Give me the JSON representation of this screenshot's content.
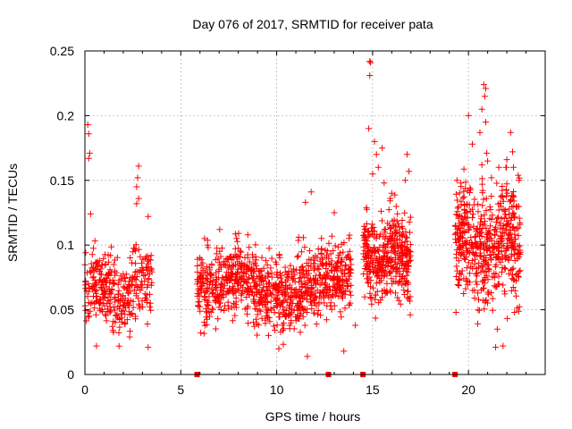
{
  "chart_data": {
    "type": "scatter",
    "title": "Day 076 of 2017, SRMTID for receiver pata",
    "xlabel": "GPS time / hours",
    "ylabel": "SRMTID / TECUs",
    "xlim": [
      0,
      24
    ],
    "ylim": [
      0,
      0.25
    ],
    "xticks": [
      0,
      5,
      10,
      15,
      20
    ],
    "xtick_labels": [
      "0",
      "5",
      "10",
      "15",
      "20"
    ],
    "yticks": [
      0,
      0.05,
      0.1,
      0.15,
      0.2,
      0.25
    ],
    "ytick_labels": [
      "0",
      "0.05",
      "0.1",
      "0.15",
      "0.2",
      "0.25"
    ],
    "grid": true,
    "marker": "+",
    "color": "#ff0000",
    "zero_markers": [
      5.85,
      12.7,
      14.5,
      19.3
    ],
    "series": [
      {
        "name": "SRMTID",
        "segments": [
          {
            "x_start": 0.0,
            "x_end": 3.5,
            "center": 0.065,
            "spread": 0.022,
            "count": 340
          },
          {
            "x_start": 5.85,
            "x_end": 13.9,
            "center": 0.068,
            "spread": 0.022,
            "count": 950
          },
          {
            "x_start": 14.5,
            "x_end": 17.0,
            "center": 0.09,
            "spread": 0.025,
            "count": 380
          },
          {
            "x_start": 19.3,
            "x_end": 22.7,
            "center": 0.1,
            "spread": 0.035,
            "count": 520
          }
        ],
        "peaks": [
          {
            "x": 0.15,
            "y": 0.193
          },
          {
            "x": 0.2,
            "y": 0.186
          },
          {
            "x": 0.25,
            "y": 0.171
          },
          {
            "x": 0.2,
            "y": 0.167
          },
          {
            "x": 0.3,
            "y": 0.124
          },
          {
            "x": 2.8,
            "y": 0.161
          },
          {
            "x": 2.75,
            "y": 0.152
          },
          {
            "x": 2.7,
            "y": 0.145
          },
          {
            "x": 2.8,
            "y": 0.136
          },
          {
            "x": 2.7,
            "y": 0.132
          },
          {
            "x": 3.3,
            "y": 0.122
          },
          {
            "x": 11.5,
            "y": 0.133
          },
          {
            "x": 11.8,
            "y": 0.141
          },
          {
            "x": 13.0,
            "y": 0.125
          },
          {
            "x": 14.85,
            "y": 0.242
          },
          {
            "x": 14.9,
            "y": 0.241
          },
          {
            "x": 14.85,
            "y": 0.231
          },
          {
            "x": 14.8,
            "y": 0.19
          },
          {
            "x": 15.1,
            "y": 0.18
          },
          {
            "x": 15.2,
            "y": 0.17
          },
          {
            "x": 15.5,
            "y": 0.175
          },
          {
            "x": 15.3,
            "y": 0.16
          },
          {
            "x": 15.0,
            "y": 0.155
          },
          {
            "x": 15.6,
            "y": 0.148
          },
          {
            "x": 16.0,
            "y": 0.14
          },
          {
            "x": 16.8,
            "y": 0.17
          },
          {
            "x": 16.9,
            "y": 0.157
          },
          {
            "x": 16.7,
            "y": 0.15
          },
          {
            "x": 20.8,
            "y": 0.224
          },
          {
            "x": 20.9,
            "y": 0.221
          },
          {
            "x": 20.85,
            "y": 0.215
          },
          {
            "x": 20.7,
            "y": 0.205
          },
          {
            "x": 20.9,
            "y": 0.195
          },
          {
            "x": 20.6,
            "y": 0.187
          },
          {
            "x": 20.95,
            "y": 0.171
          },
          {
            "x": 20.7,
            "y": 0.162
          },
          {
            "x": 20.0,
            "y": 0.2
          },
          {
            "x": 20.2,
            "y": 0.178
          },
          {
            "x": 21.0,
            "y": 0.165
          },
          {
            "x": 22.2,
            "y": 0.187
          },
          {
            "x": 22.3,
            "y": 0.172
          },
          {
            "x": 22.0,
            "y": 0.166
          },
          {
            "x": 19.4,
            "y": 0.15
          },
          {
            "x": 19.6,
            "y": 0.148
          },
          {
            "x": 21.2,
            "y": 0.152
          },
          {
            "x": 21.5,
            "y": 0.035
          },
          {
            "x": 21.8,
            "y": 0.022
          },
          {
            "x": 19.35,
            "y": 0.048
          },
          {
            "x": 13.5,
            "y": 0.018
          },
          {
            "x": 11.6,
            "y": 0.014
          },
          {
            "x": 14.1,
            "y": 0.038
          },
          {
            "x": 3.3,
            "y": 0.021
          },
          {
            "x": 0.6,
            "y": 0.022
          }
        ]
      }
    ]
  }
}
